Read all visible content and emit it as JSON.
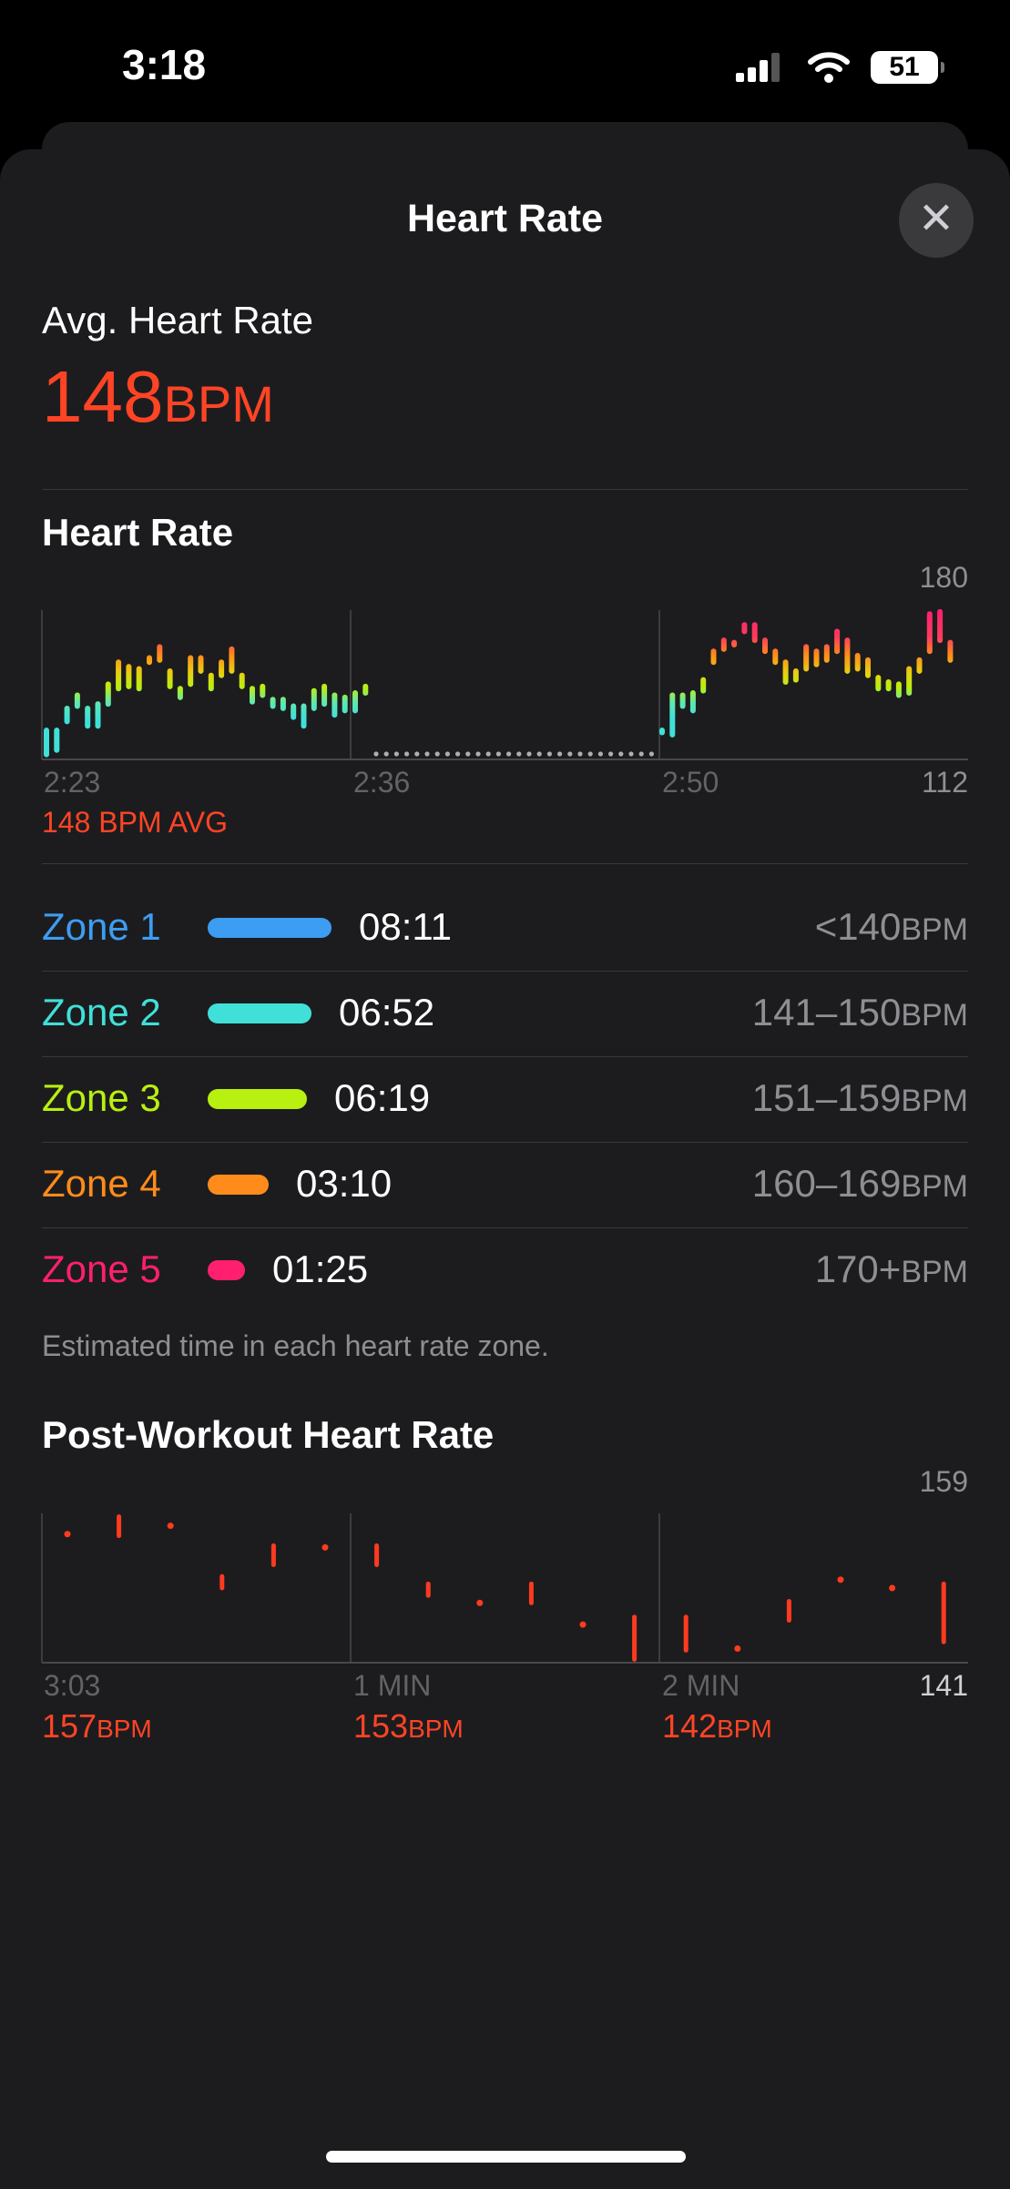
{
  "status": {
    "time": "3:18",
    "battery": "51"
  },
  "header": {
    "title": "Heart Rate",
    "close_icon": "close-icon"
  },
  "summary": {
    "label": "Avg. Heart Rate",
    "value": "148",
    "unit": "BPM"
  },
  "hr_section": {
    "title": "Heart Rate",
    "y_max": "180",
    "y_min": "112",
    "x_labels": [
      "2:23",
      "2:36",
      "2:50"
    ],
    "avg_label": "148 BPM AVG"
  },
  "zones": [
    {
      "name": "Zone 1",
      "time": "08:11",
      "range": "<140",
      "unit": "BPM",
      "color": "#3d9df2",
      "fraction": 1.0
    },
    {
      "name": "Zone 2",
      "time": "06:52",
      "range": "141–150",
      "unit": "BPM",
      "color": "#40e0d8",
      "fraction": 0.84
    },
    {
      "name": "Zone 3",
      "time": "06:19",
      "range": "151–159",
      "unit": "BPM",
      "color": "#b8f010",
      "fraction": 0.8
    },
    {
      "name": "Zone 4",
      "time": "03:10",
      "range": "160–169",
      "unit": "BPM",
      "color": "#ff8c1a",
      "fraction": 0.49
    },
    {
      "name": "Zone 5",
      "time": "01:25",
      "range": "170+",
      "unit": "BPM",
      "color": "#ff1f6e",
      "fraction": 0.3
    }
  ],
  "zones_note": "Estimated time in each heart rate zone.",
  "post": {
    "title": "Post-Workout Heart Rate",
    "y_max": "159",
    "y_min": "141",
    "x_labels": [
      "3:03",
      "1 MIN",
      "2 MIN"
    ],
    "values": [
      {
        "v": "157",
        "u": "BPM"
      },
      {
        "v": "153",
        "u": "BPM"
      },
      {
        "v": "142",
        "u": "BPM"
      }
    ]
  },
  "chart_data": [
    {
      "type": "bar",
      "title": "Heart Rate",
      "ylim": [
        112,
        180
      ],
      "x_labels": [
        "2:23",
        "2:36",
        "2:50"
      ],
      "segments": [
        {
          "start": 0,
          "ranges": [
            [
              113,
              124
            ],
            [
              115,
              124
            ],
            [
              128,
              134
            ],
            [
              135,
              140
            ],
            [
              126,
              134
            ],
            [
              126,
              136
            ],
            [
              136,
              145
            ],
            [
              143,
              155
            ],
            [
              144,
              153
            ],
            [
              143,
              152
            ],
            [
              155,
              157
            ],
            [
              156,
              162
            ],
            [
              144,
              151
            ],
            [
              139,
              143
            ],
            [
              145,
              157
            ],
            [
              151,
              157
            ],
            [
              143,
              149
            ],
            [
              149,
              155
            ],
            [
              151,
              161
            ],
            [
              144,
              149
            ],
            [
              137,
              143
            ],
            [
              140,
              144
            ],
            [
              135,
              138
            ],
            [
              134,
              138
            ],
            [
              130,
              135
            ],
            [
              126,
              135
            ],
            [
              134,
              142
            ],
            [
              136,
              144
            ],
            [
              131,
              140
            ],
            [
              133,
              139
            ],
            [
              133,
              141
            ],
            [
              141,
              144
            ]
          ]
        },
        {
          "start": 60,
          "ranges": [
            [
              123,
              124
            ],
            [
              122,
              140
            ],
            [
              135,
              140
            ],
            [
              133,
              141
            ],
            [
              142,
              147
            ],
            [
              155,
              160
            ],
            [
              161,
              165
            ],
            [
              163,
              164
            ],
            [
              169,
              172
            ],
            [
              165,
              172
            ],
            [
              160,
              165
            ],
            [
              155,
              160
            ],
            [
              146,
              155
            ],
            [
              147,
              151
            ],
            [
              152,
              162
            ],
            [
              154,
              160
            ],
            [
              156,
              162
            ],
            [
              160,
              169
            ],
            [
              151,
              165
            ],
            [
              152,
              158
            ],
            [
              149,
              156
            ],
            [
              143,
              148
            ],
            [
              143,
              146
            ],
            [
              140,
              145
            ],
            [
              141,
              152
            ],
            [
              151,
              156
            ],
            [
              160,
              177
            ],
            [
              165,
              178
            ],
            [
              156,
              164
            ]
          ]
        }
      ],
      "gap_dots": 28,
      "avg": 148
    },
    {
      "type": "bar",
      "title": "Post-Workout Heart Rate",
      "ylim": [
        141,
        159
      ],
      "x_labels": [
        "3:03",
        "1 MIN",
        "2 MIN"
      ],
      "ranges": [
        [
          156.5,
          156.5
        ],
        [
          156.3,
          158.6
        ],
        [
          157.5,
          157.5
        ],
        [
          150,
          151.4
        ],
        [
          152.8,
          155.1
        ],
        [
          154.9,
          154.9
        ],
        [
          152.8,
          155.1
        ],
        [
          149.1,
          150.5
        ],
        [
          148.2,
          148.2
        ],
        [
          148.2,
          150.5
        ],
        [
          145.6,
          145.6
        ],
        [
          141.4,
          146.5
        ],
        [
          142.5,
          146.5
        ],
        [
          142.7,
          142.7
        ],
        [
          146.1,
          148.4
        ],
        [
          151,
          151
        ],
        [
          150,
          150
        ],
        [
          143.5,
          150.5
        ]
      ]
    }
  ]
}
